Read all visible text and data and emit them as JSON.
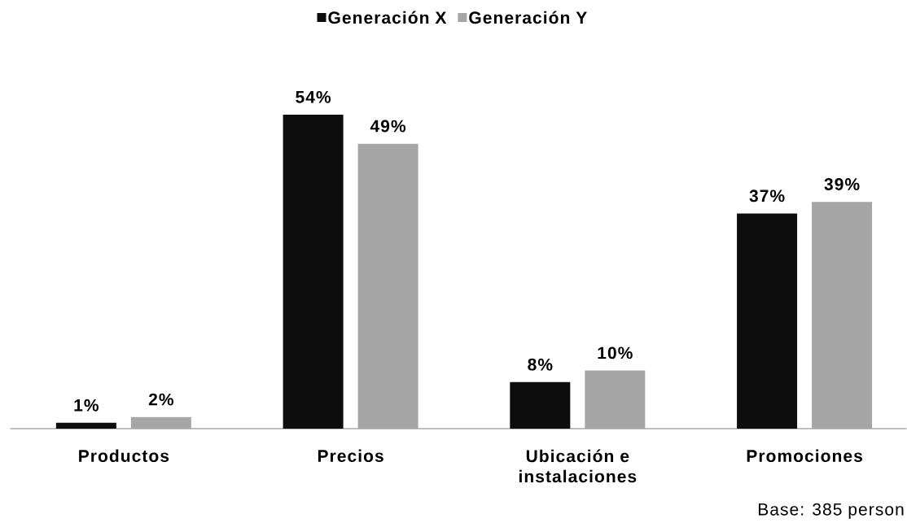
{
  "chart_data": {
    "type": "bar",
    "categories": [
      "Productos",
      "Precios",
      "Ubicación e instalaciones",
      "Promociones"
    ],
    "series": [
      {
        "name": "Generación X",
        "color": "#0d0d0d",
        "values": [
          1,
          54,
          8,
          37
        ],
        "value_labels": [
          "1%",
          "54%",
          "8%",
          "37%"
        ]
      },
      {
        "name": "Generación Y",
        "color": "#a6a6a6",
        "values": [
          2,
          49,
          10,
          39
        ],
        "value_labels": [
          "2%",
          "49%",
          "10%",
          "39%"
        ]
      }
    ],
    "legend": "top",
    "annotations": [
      "Base: 385 person"
    ]
  }
}
